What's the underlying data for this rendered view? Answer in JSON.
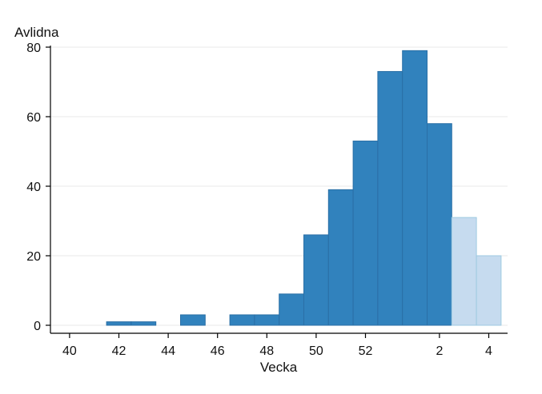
{
  "chart_data": {
    "type": "bar",
    "title": "",
    "xlabel": "Vecka",
    "ylabel": "Avlidna",
    "ylim": [
      0,
      80
    ],
    "yticks": [
      0,
      20,
      40,
      60,
      80
    ],
    "xticks": [
      "40",
      "42",
      "44",
      "46",
      "48",
      "50",
      "52",
      "2",
      "4"
    ],
    "grid": true,
    "colors": {
      "confirmed": "#3182bd",
      "preliminary": "#c6dbef",
      "preliminary_edge": "#9ecae1",
      "grid": "#e8e8e8",
      "axis": "#000000"
    },
    "categories": [
      "40",
      "41",
      "42",
      "43",
      "44",
      "45",
      "46",
      "47",
      "48",
      "49",
      "50",
      "51",
      "52",
      "53",
      "1",
      "2",
      "3",
      "4",
      "5"
    ],
    "values": [
      0,
      0,
      1,
      1,
      0,
      3,
      0,
      3,
      3,
      9,
      26,
      39,
      53,
      73,
      79,
      58,
      31,
      20,
      0
    ],
    "preliminary": [
      false,
      false,
      false,
      false,
      false,
      false,
      false,
      false,
      false,
      false,
      false,
      false,
      false,
      false,
      false,
      false,
      true,
      true,
      false
    ]
  }
}
